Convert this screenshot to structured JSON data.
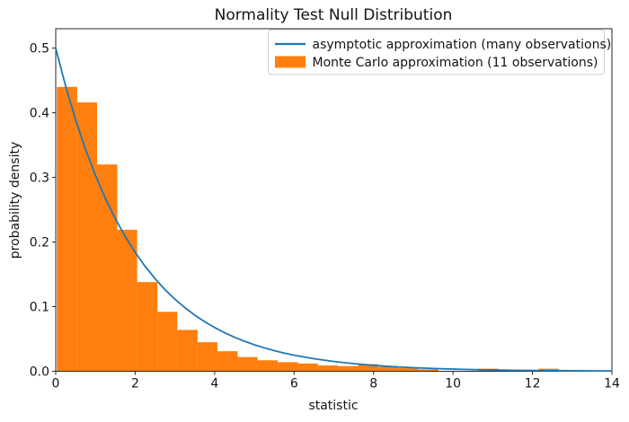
{
  "figure": {
    "title": "Normality Test Null Distribution",
    "xlabel": "statistic",
    "ylabel": "probability density"
  },
  "legend": {
    "position": "upper right",
    "items": [
      {
        "label": "asymptotic approximation (many observations)",
        "swatch": "line",
        "color": "#1f77b4"
      },
      {
        "label": "Monte Carlo approximation (11 observations)",
        "swatch": "patch",
        "color": "#ff7f0e"
      }
    ]
  },
  "colors": {
    "line": "#1f77b4",
    "bar": "#ff7f0e",
    "spine": "#262626",
    "tick": "#262626",
    "legend_border": "#cccccc",
    "background": "#ffffff"
  },
  "chart_data": {
    "type": "line+histogram",
    "title": "Normality Test Null Distribution",
    "xlabel": "statistic",
    "ylabel": "probability density",
    "xlim": [
      0,
      14
    ],
    "ylim": [
      0,
      0.53
    ],
    "x_ticks": [
      0,
      2,
      4,
      6,
      8,
      10,
      12,
      14
    ],
    "x_tick_labels": [
      "0",
      "2",
      "4",
      "6",
      "8",
      "10",
      "12",
      "14"
    ],
    "y_ticks": [
      0.0,
      0.1,
      0.2,
      0.3,
      0.4,
      0.5
    ],
    "y_tick_labels": [
      "0.0",
      "0.1",
      "0.2",
      "0.3",
      "0.4",
      "0.5"
    ],
    "grid": false,
    "legend_position": "upper right",
    "series": [
      {
        "name": "asymptotic approximation (many observations)",
        "type": "line",
        "color": "#1f77b4",
        "line_width": 1.8,
        "x": [
          0,
          0.25,
          0.5,
          0.75,
          1,
          1.25,
          1.5,
          1.75,
          2,
          2.25,
          2.5,
          2.75,
          3,
          3.25,
          3.5,
          3.75,
          4,
          4.25,
          4.5,
          4.75,
          5,
          5.25,
          5.5,
          5.75,
          6,
          6.5,
          7,
          7.5,
          8,
          8.5,
          9,
          9.5,
          10,
          10.5,
          11,
          11.5,
          12,
          12.5,
          13,
          13.5,
          14
        ],
        "y": [
          0.5,
          0.4412,
          0.3894,
          0.3436,
          0.3033,
          0.2676,
          0.2362,
          0.2084,
          0.1839,
          0.1623,
          0.1433,
          0.1264,
          0.1116,
          0.0985,
          0.0869,
          0.0767,
          0.0677,
          0.0597,
          0.0527,
          0.0465,
          0.041,
          0.0362,
          0.032,
          0.0282,
          0.0249,
          0.0194,
          0.0151,
          0.0118,
          0.0092,
          0.0071,
          0.0056,
          0.0043,
          0.0034,
          0.0026,
          0.002,
          0.0016,
          0.0012,
          0.001,
          0.0008,
          0.0006,
          0.0005
        ]
      },
      {
        "name": "Monte Carlo approximation (11 observations)",
        "type": "histogram",
        "color": "#ff7f0e",
        "bars": [
          {
            "x0": 0.03,
            "x1": 0.54,
            "density": 0.44
          },
          {
            "x0": 0.54,
            "x1": 1.04,
            "density": 0.416
          },
          {
            "x0": 1.04,
            "x1": 1.55,
            "density": 0.32
          },
          {
            "x0": 1.55,
            "x1": 2.05,
            "density": 0.219
          },
          {
            "x0": 2.05,
            "x1": 2.56,
            "density": 0.138
          },
          {
            "x0": 2.56,
            "x1": 3.06,
            "density": 0.092
          },
          {
            "x0": 3.06,
            "x1": 3.57,
            "density": 0.064
          },
          {
            "x0": 3.57,
            "x1": 4.07,
            "density": 0.045
          },
          {
            "x0": 4.07,
            "x1": 4.58,
            "density": 0.031
          },
          {
            "x0": 4.58,
            "x1": 5.08,
            "density": 0.022
          },
          {
            "x0": 5.08,
            "x1": 5.59,
            "density": 0.017
          },
          {
            "x0": 5.59,
            "x1": 6.1,
            "density": 0.014
          },
          {
            "x0": 6.1,
            "x1": 6.6,
            "density": 0.012
          },
          {
            "x0": 6.6,
            "x1": 7.1,
            "density": 0.009
          },
          {
            "x0": 7.1,
            "x1": 7.61,
            "density": 0.008
          },
          {
            "x0": 7.61,
            "x1": 8.11,
            "density": 0.011
          },
          {
            "x0": 8.11,
            "x1": 8.62,
            "density": 0.007
          },
          {
            "x0": 8.62,
            "x1": 9.12,
            "density": 0.005
          },
          {
            "x0": 9.12,
            "x1": 9.63,
            "density": 0.003
          },
          {
            "x0": 10.64,
            "x1": 11.14,
            "density": 0.004
          },
          {
            "x0": 12.15,
            "x1": 12.66,
            "density": 0.004
          }
        ]
      }
    ]
  }
}
